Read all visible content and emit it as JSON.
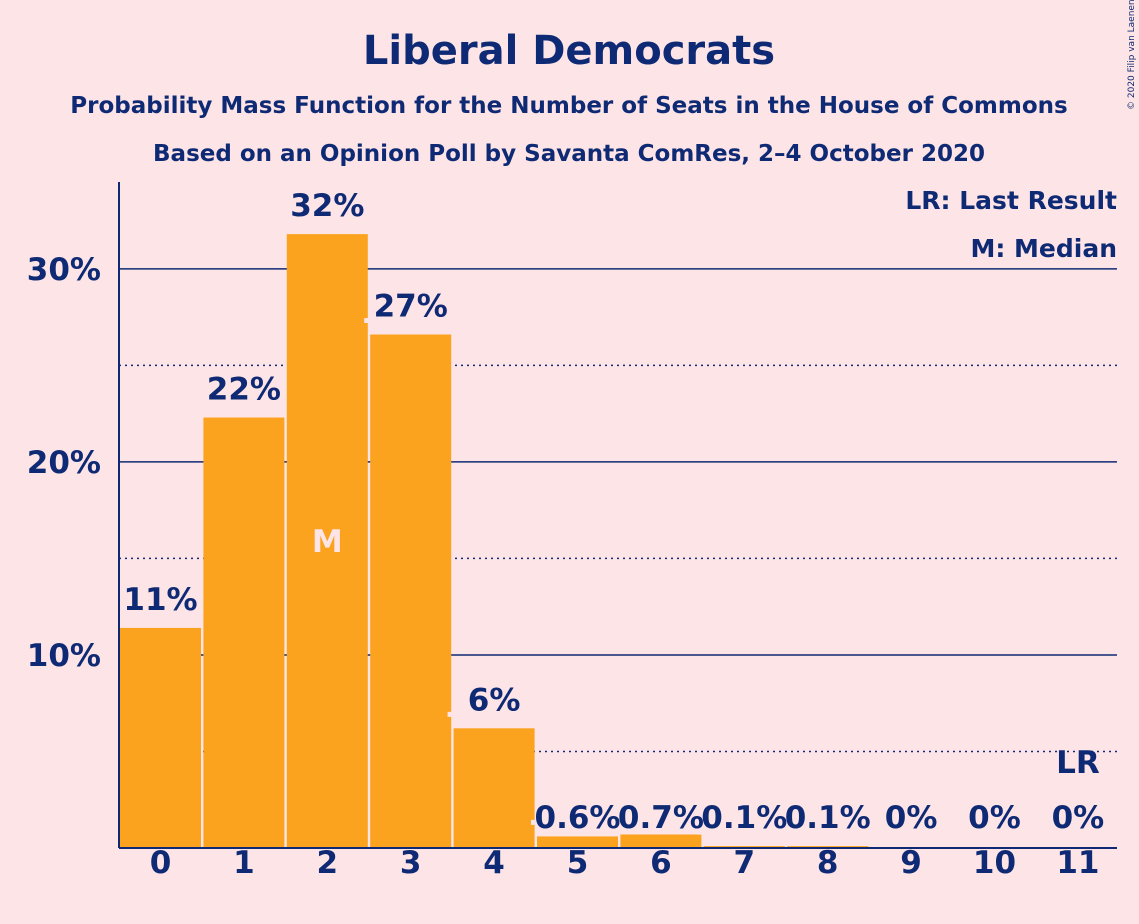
{
  "chart_data": {
    "type": "bar",
    "title": "Liberal Democrats",
    "subtitle": "Probability Mass Function for the Number of Seats in the House of Commons",
    "subtitle2": "Based on an Opinion Poll by Savanta ComRes, 2–4 October 2020",
    "categories": [
      "0",
      "1",
      "2",
      "3",
      "4",
      "5",
      "6",
      "7",
      "8",
      "9",
      "10",
      "11"
    ],
    "values": [
      11.4,
      22.3,
      31.8,
      26.6,
      6.2,
      0.6,
      0.7,
      0.1,
      0.1,
      0,
      0,
      0
    ],
    "value_labels": [
      "11%",
      "22%",
      "32%",
      "27%",
      "6%",
      "0.6%",
      "0.7%",
      "0.1%",
      "0.1%",
      "0%",
      "0%",
      "0%"
    ],
    "ylim": [
      0,
      34.5
    ],
    "yticks": [
      10,
      20,
      30
    ],
    "ytick_labels": [
      "10%",
      "20%",
      "30%"
    ],
    "minor_gridlines": [
      5,
      15,
      25
    ],
    "median_index": 2,
    "median_marker": "M",
    "last_result_index": 11,
    "last_result_marker": "LR",
    "legend": [
      "LR: Last Result",
      "M: Median"
    ],
    "legend_position": "top-right",
    "bar_color": "#fba31f",
    "text_color": "#0f2a74",
    "background_color": "#fde4e6",
    "copyright": "© 2020 Filip van Laenen"
  }
}
